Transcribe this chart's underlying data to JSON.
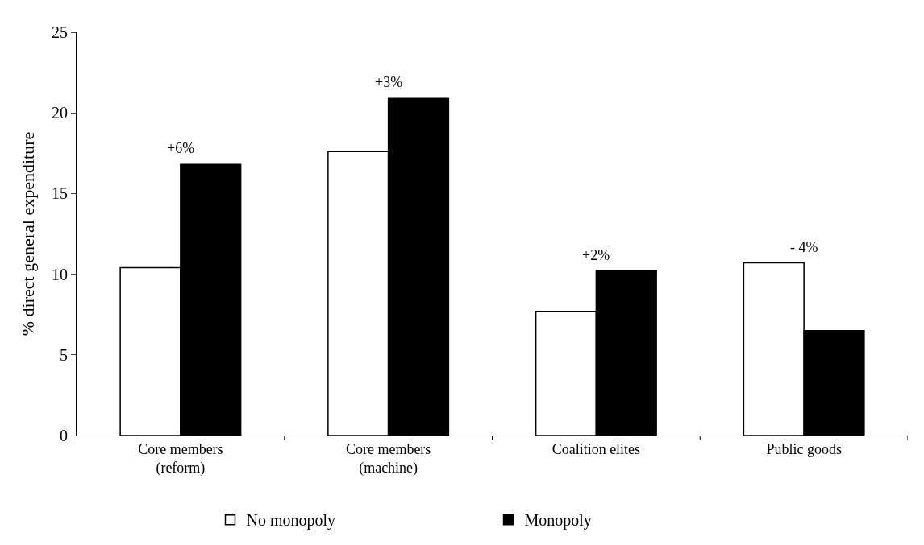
{
  "chart_data": {
    "type": "bar",
    "ylabel": "% direct general expenditure",
    "categories": [
      "Core members\n(reform)",
      "Core members\n(machine)",
      "Coalition elites",
      "Public goods"
    ],
    "series": [
      {
        "name": "No monopoly",
        "color": "#ffffff",
        "values": [
          10.4,
          17.6,
          7.7,
          10.7
        ]
      },
      {
        "name": "Monopoly",
        "color": "#000000",
        "values": [
          16.8,
          20.9,
          10.2,
          6.5
        ]
      }
    ],
    "ylim": [
      0,
      25
    ],
    "yticks": [
      0,
      5,
      10,
      15,
      20,
      25
    ],
    "legend": "bottom",
    "annotations": [
      "+6%",
      "+3%",
      "+2%",
      "- 4%"
    ]
  }
}
